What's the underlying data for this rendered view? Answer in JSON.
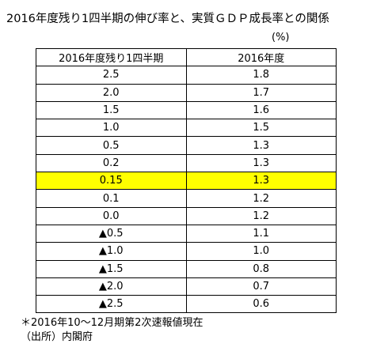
{
  "header": {
    "title": "2016年度残り1四半期の伸び率と、実質ＧＤＰ成長率との関係",
    "unit": "(%)"
  },
  "table": {
    "columns": [
      "2016年度残り1四半期",
      "2016年度"
    ],
    "rows": [
      [
        "2.5",
        "1.8"
      ],
      [
        "2.0",
        "1.7"
      ],
      [
        "1.5",
        "1.6"
      ],
      [
        "1.0",
        "1.5"
      ],
      [
        "0.5",
        "1.3"
      ],
      [
        "0.2",
        "1.3"
      ],
      [
        "0.15",
        "1.3"
      ],
      [
        "0.1",
        "1.2"
      ],
      [
        "0.0",
        "1.2"
      ],
      [
        "▲0.5",
        "1.1"
      ],
      [
        "▲1.0",
        "1.0"
      ],
      [
        "▲1.5",
        "0.8"
      ],
      [
        "▲2.0",
        "0.7"
      ],
      [
        "▲2.5",
        "0.6"
      ]
    ]
  },
  "notes": [
    "＊2016年10～12月期第2次速報値現在",
    "（出所）内閣府"
  ]
}
